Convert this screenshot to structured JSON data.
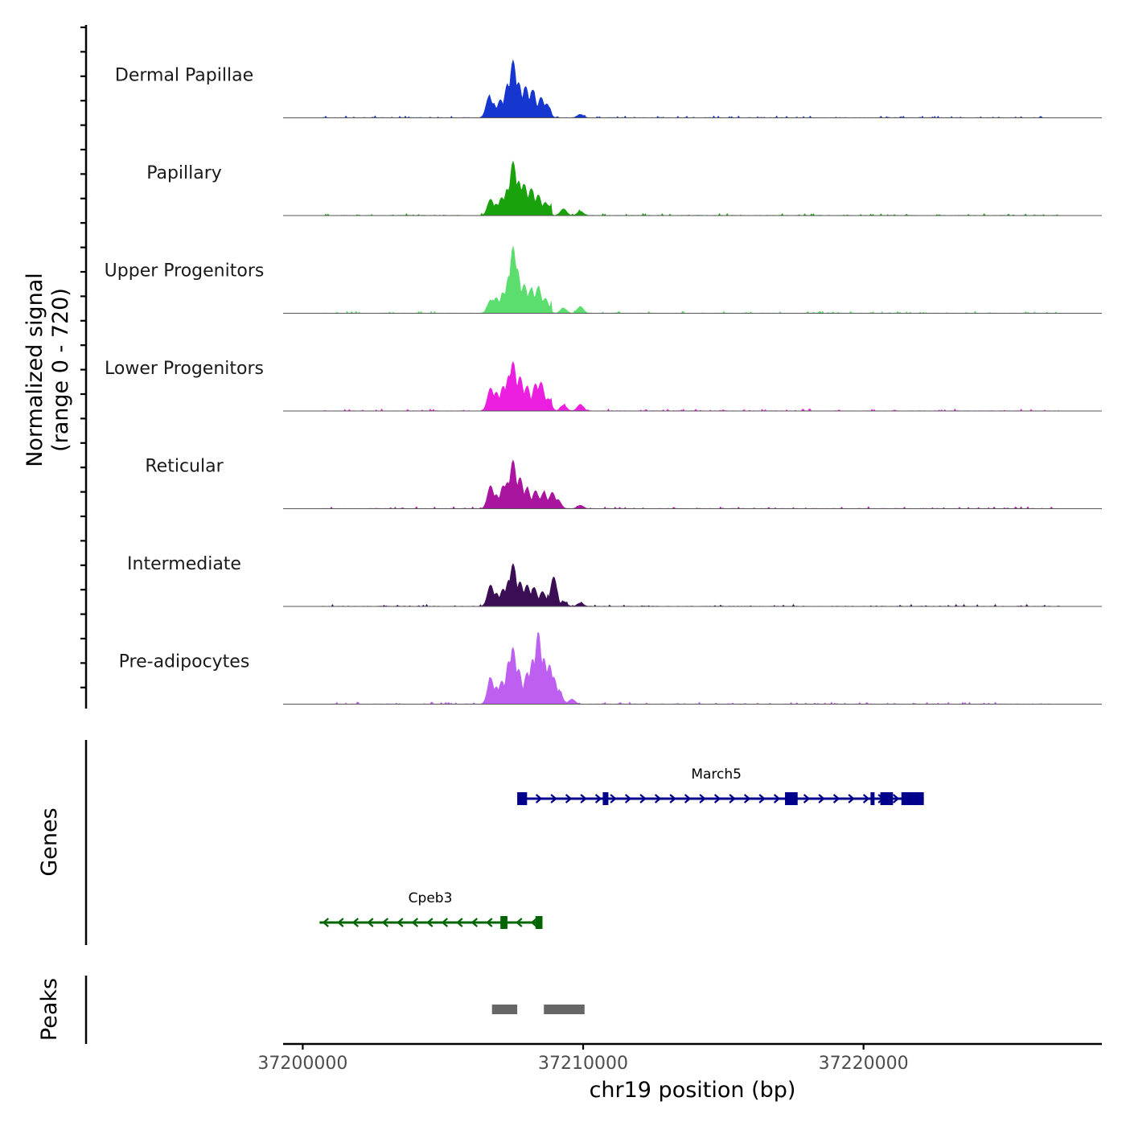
{
  "chart_data": {
    "type": "area",
    "title": "",
    "ylabel": "Normalized signal",
    "ylabel_range": "(range 0 - 720)",
    "xlabel": "chr19 position (bp)",
    "x_range": [
      37199300,
      37228500
    ],
    "y_range": [
      0,
      720
    ],
    "x_ticks": [
      {
        "value": 37200000,
        "label": "37200000"
      },
      {
        "value": 37210000,
        "label": "37210000"
      },
      {
        "value": 37220000,
        "label": "37220000"
      }
    ],
    "series": [
      {
        "name": "Dermal Papillae",
        "color": "#1537d0",
        "values": [
          [
            37206650,
            260
          ],
          [
            37206800,
            170
          ],
          [
            37207050,
            220
          ],
          [
            37207300,
            400
          ],
          [
            37207500,
            700
          ],
          [
            37207700,
            430
          ],
          [
            37207950,
            380
          ],
          [
            37208200,
            340
          ],
          [
            37208500,
            250
          ],
          [
            37208700,
            170
          ],
          [
            37209900,
            40
          ]
        ]
      },
      {
        "name": "Papillary",
        "color": "#1aa20c",
        "values": [
          [
            37206700,
            200
          ],
          [
            37206900,
            140
          ],
          [
            37207100,
            220
          ],
          [
            37207300,
            320
          ],
          [
            37207500,
            660
          ],
          [
            37207700,
            420
          ],
          [
            37207900,
            380
          ],
          [
            37208150,
            330
          ],
          [
            37208400,
            250
          ],
          [
            37208650,
            160
          ],
          [
            37209300,
            80
          ],
          [
            37209900,
            50
          ]
        ]
      },
      {
        "name": "Upper Progenitors",
        "color": "#5cde6f",
        "values": [
          [
            37206700,
            160
          ],
          [
            37206900,
            190
          ],
          [
            37207150,
            250
          ],
          [
            37207350,
            450
          ],
          [
            37207500,
            810
          ],
          [
            37207650,
            540
          ],
          [
            37207900,
            350
          ],
          [
            37208150,
            300
          ],
          [
            37208400,
            320
          ],
          [
            37208650,
            180
          ],
          [
            37209300,
            60
          ],
          [
            37209900,
            80
          ]
        ]
      },
      {
        "name": "Lower Progenitors",
        "color": "#ec1fe0",
        "values": [
          [
            37206700,
            280
          ],
          [
            37206900,
            230
          ],
          [
            37207150,
            300
          ],
          [
            37207350,
            430
          ],
          [
            37207500,
            600
          ],
          [
            37207750,
            420
          ],
          [
            37208000,
            300
          ],
          [
            37208300,
            330
          ],
          [
            37208500,
            350
          ],
          [
            37208750,
            150
          ],
          [
            37209300,
            70
          ],
          [
            37209900,
            80
          ]
        ]
      },
      {
        "name": "Reticular",
        "color": "#aa15a0",
        "values": [
          [
            37206700,
            280
          ],
          [
            37206900,
            170
          ],
          [
            37207150,
            280
          ],
          [
            37207300,
            320
          ],
          [
            37207500,
            590
          ],
          [
            37207750,
            380
          ],
          [
            37208000,
            250
          ],
          [
            37208300,
            220
          ],
          [
            37208600,
            200
          ],
          [
            37208900,
            200
          ],
          [
            37209100,
            110
          ],
          [
            37209900,
            40
          ]
        ]
      },
      {
        "name": "Intermediate",
        "color": "#3a0d54",
        "values": [
          [
            37206700,
            260
          ],
          [
            37206900,
            160
          ],
          [
            37207150,
            210
          ],
          [
            37207350,
            320
          ],
          [
            37207500,
            520
          ],
          [
            37207750,
            300
          ],
          [
            37208000,
            260
          ],
          [
            37208250,
            230
          ],
          [
            37208550,
            180
          ],
          [
            37208950,
            360
          ],
          [
            37209300,
            60
          ],
          [
            37209900,
            40
          ]
        ]
      },
      {
        "name": "Pre-adipocytes",
        "color": "#be5ff2",
        "values": [
          [
            37206700,
            320
          ],
          [
            37206900,
            210
          ],
          [
            37207100,
            280
          ],
          [
            37207350,
            520
          ],
          [
            37207500,
            690
          ],
          [
            37207700,
            430
          ],
          [
            37208000,
            380
          ],
          [
            37208200,
            550
          ],
          [
            37208400,
            880
          ],
          [
            37208600,
            560
          ],
          [
            37208800,
            480
          ],
          [
            37208950,
            330
          ],
          [
            37209150,
            160
          ],
          [
            37209600,
            60
          ]
        ]
      }
    ],
    "genes": [
      {
        "name": "March5",
        "strand": "+",
        "color": "#00008b",
        "start": 37207650,
        "end": 37222150,
        "exons": [
          [
            37207650,
            37208000
          ],
          [
            37210700,
            37210900
          ],
          [
            37217200,
            37217650
          ],
          [
            37220250,
            37220350
          ],
          [
            37220600,
            37221050
          ],
          [
            37221350,
            37222150
          ]
        ]
      },
      {
        "name": "Cpeb3",
        "strand": "-",
        "color": "#006400",
        "start": 37200600,
        "end": 37208550,
        "exons": [
          [
            37207050,
            37207300
          ],
          [
            37208300,
            37208550
          ]
        ]
      }
    ],
    "peaks_label": "Peaks",
    "genes_label": "Genes",
    "peaks": [
      [
        37206750,
        37207650
      ],
      [
        37208600,
        37210050
      ]
    ]
  }
}
